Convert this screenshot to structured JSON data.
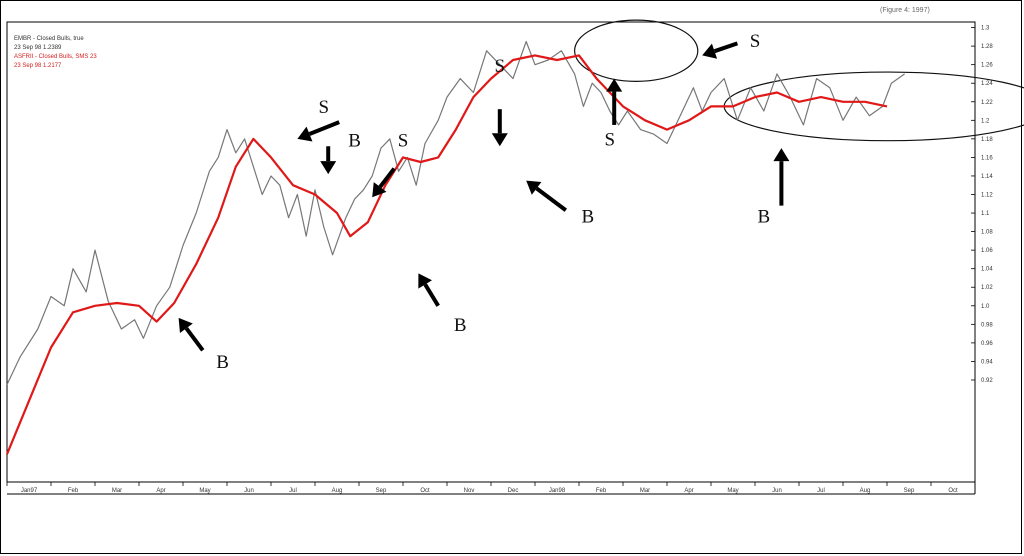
{
  "header": {
    "text": "(Figure 4: 1997)"
  },
  "legend": {
    "lines": [
      {
        "text": "EMBR - Closed Bulls, true",
        "color": "#333333"
      },
      {
        "text": "23 Sep 98  1.2389",
        "color": "#333333"
      },
      {
        "text": "ASFRII - Closed Bulls, SMS 23",
        "color": "#d42020"
      },
      {
        "text": "23 Sep 98  1.2177",
        "color": "#d42020"
      }
    ]
  },
  "chart_data": {
    "type": "line",
    "title": "",
    "xlabel": "",
    "ylabel": "",
    "ylim": [
      0.81,
      1.306
    ],
    "x_ticks": [
      "Jan97",
      "Feb",
      "Mar",
      "Apr",
      "May",
      "Jun",
      "Jul",
      "Aug",
      "Sep",
      "Oct",
      "Nov",
      "Dec",
      "Jan98",
      "Feb",
      "Mar",
      "Apr",
      "May",
      "Jun",
      "Jul",
      "Aug",
      "Sep",
      "Oct"
    ],
    "y_ticks": [
      "1.3",
      "1.28",
      "1.26",
      "1.24",
      "1.22",
      "1.2",
      "1.18",
      "1.16",
      "1.14",
      "1.12",
      "1.1",
      "1.08",
      "1.06",
      "1.04",
      "1.02",
      "1.0",
      "0.98",
      "0.96",
      "0.94",
      "0.92"
    ],
    "price": {
      "color": "#777777",
      "x": [
        0,
        0.3,
        0.7,
        1.0,
        1.3,
        1.5,
        1.8,
        2.0,
        2.3,
        2.6,
        2.9,
        3.1,
        3.4,
        3.7,
        4.0,
        4.3,
        4.6,
        4.8,
        5.0,
        5.2,
        5.4,
        5.6,
        5.8,
        6.0,
        6.2,
        6.4,
        6.6,
        6.8,
        7.0,
        7.2,
        7.4,
        7.7,
        7.9,
        8.1,
        8.3,
        8.5,
        8.7,
        8.9,
        9.1,
        9.3,
        9.5,
        9.8,
        10.0,
        10.3,
        10.6,
        10.9,
        11.2,
        11.5,
        11.8,
        12.0,
        12.3,
        12.6,
        12.9,
        13.1,
        13.3,
        13.5,
        13.7,
        13.9,
        14.1,
        14.4,
        14.7,
        15.0,
        15.3,
        15.6,
        15.8,
        16.0,
        16.3,
        16.6,
        16.9,
        17.2,
        17.5,
        17.8,
        18.1,
        18.4,
        18.7,
        19.0,
        19.3,
        19.6,
        19.9,
        20.1,
        20.4
      ],
      "y": [
        0.915,
        0.945,
        0.975,
        1.01,
        1.0,
        1.04,
        1.015,
        1.06,
        1.005,
        0.975,
        0.985,
        0.965,
        1.0,
        1.02,
        1.065,
        1.1,
        1.145,
        1.16,
        1.19,
        1.165,
        1.18,
        1.15,
        1.12,
        1.14,
        1.13,
        1.095,
        1.12,
        1.075,
        1.125,
        1.085,
        1.055,
        1.095,
        1.115,
        1.125,
        1.14,
        1.17,
        1.18,
        1.145,
        1.16,
        1.13,
        1.175,
        1.2,
        1.225,
        1.245,
        1.23,
        1.275,
        1.26,
        1.245,
        1.285,
        1.26,
        1.265,
        1.275,
        1.25,
        1.215,
        1.24,
        1.23,
        1.21,
        1.195,
        1.21,
        1.19,
        1.185,
        1.175,
        1.205,
        1.235,
        1.21,
        1.23,
        1.245,
        1.2,
        1.235,
        1.21,
        1.25,
        1.225,
        1.195,
        1.245,
        1.235,
        1.2,
        1.225,
        1.205,
        1.215,
        1.24,
        1.25
      ]
    },
    "ma": {
      "color": "#e01818",
      "x": [
        0,
        1.0,
        1.5,
        2.0,
        2.5,
        3.0,
        3.4,
        3.8,
        4.3,
        4.8,
        5.2,
        5.6,
        6.0,
        6.5,
        7.0,
        7.5,
        7.8,
        8.2,
        8.6,
        9.0,
        9.4,
        9.8,
        10.2,
        10.6,
        11.0,
        11.5,
        12.0,
        12.5,
        13.0,
        13.4,
        14.0,
        14.5,
        15.0,
        15.5,
        16.0,
        16.5,
        17.0,
        17.5,
        18.0,
        18.5,
        19.0,
        19.5,
        20.0
      ],
      "y": [
        0.84,
        0.955,
        0.993,
        1.0,
        1.003,
        1.0,
        0.983,
        1.003,
        1.045,
        1.095,
        1.15,
        1.18,
        1.16,
        1.13,
        1.12,
        1.1,
        1.075,
        1.09,
        1.13,
        1.16,
        1.155,
        1.16,
        1.19,
        1.225,
        1.245,
        1.265,
        1.27,
        1.265,
        1.27,
        1.245,
        1.215,
        1.2,
        1.19,
        1.2,
        1.215,
        1.215,
        1.225,
        1.23,
        1.22,
        1.225,
        1.22,
        1.22,
        1.215
      ]
    },
    "annotations": {
      "labels": [
        {
          "text": "S",
          "x": 7.2,
          "y": 1.208
        },
        {
          "text": "B",
          "x": 7.9,
          "y": 1.172
        },
        {
          "text": "S",
          "x": 9.0,
          "y": 1.172
        },
        {
          "text": "S",
          "x": 11.2,
          "y": 1.252
        },
        {
          "text": "S",
          "x": 13.7,
          "y": 1.173
        },
        {
          "text": "S",
          "x": 17.0,
          "y": 1.279
        },
        {
          "text": "B",
          "x": 13.2,
          "y": 1.09
        },
        {
          "text": "B",
          "x": 17.2,
          "y": 1.09
        },
        {
          "text": "B",
          "x": 10.3,
          "y": 0.973
        },
        {
          "text": "B",
          "x": 4.9,
          "y": 0.933
        }
      ],
      "arrows": [
        {
          "x1": 7.55,
          "y1": 1.198,
          "x2": 6.6,
          "y2": 1.18
        },
        {
          "x1": 7.3,
          "y1": 1.172,
          "x2": 7.3,
          "y2": 1.142
        },
        {
          "x1": 8.8,
          "y1": 1.148,
          "x2": 8.3,
          "y2": 1.117
        },
        {
          "x1": 11.2,
          "y1": 1.212,
          "x2": 11.2,
          "y2": 1.172
        },
        {
          "x1": 12.7,
          "y1": 1.103,
          "x2": 11.8,
          "y2": 1.135
        },
        {
          "x1": 13.8,
          "y1": 1.195,
          "x2": 13.8,
          "y2": 1.245
        },
        {
          "x1": 16.6,
          "y1": 1.283,
          "x2": 15.8,
          "y2": 1.27
        },
        {
          "x1": 17.6,
          "y1": 1.108,
          "x2": 17.6,
          "y2": 1.17
        },
        {
          "x1": 9.8,
          "y1": 1.0,
          "x2": 9.35,
          "y2": 1.035
        },
        {
          "x1": 4.45,
          "y1": 0.952,
          "x2": 3.9,
          "y2": 0.987
        }
      ],
      "ellipses": [
        {
          "cx": 14.3,
          "cy": 1.275,
          "rx": 1.4,
          "ry": 0.033
        },
        {
          "cx": 20.0,
          "cy": 1.215,
          "rx": 3.7,
          "ry": 0.037
        }
      ]
    }
  }
}
